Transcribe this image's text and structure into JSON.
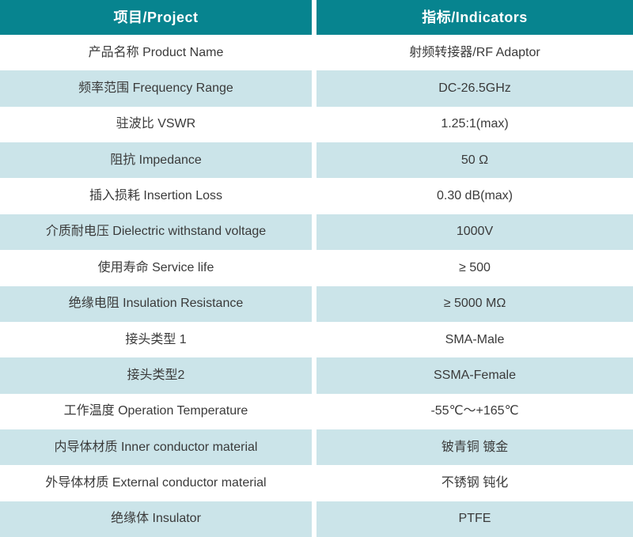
{
  "table": {
    "header": {
      "project": "项目/Project",
      "indicators": "指标/Indicators"
    },
    "rows": [
      {
        "label": "产品名称 Product Name",
        "value": "射频转接器/RF Adaptor"
      },
      {
        "label": "频率范围 Frequency Range",
        "value": "DC-26.5GHz"
      },
      {
        "label": "驻波比 VSWR",
        "value": "1.25:1(max)"
      },
      {
        "label": "阻抗 Impedance",
        "value": "50 Ω"
      },
      {
        "label": "插入损耗 Insertion Loss",
        "value": "0.30 dB(max)"
      },
      {
        "label": "介质耐电压 Dielectric withstand voltage",
        "value": "1000V"
      },
      {
        "label": "使用寿命 Service life",
        "value": "≥ 500"
      },
      {
        "label": "绝缘电阻 Insulation Resistance",
        "value": "≥ 5000 MΩ"
      },
      {
        "label": "接头类型 1",
        "value": "SMA-Male"
      },
      {
        "label": "接头类型2",
        "value": "SSMA-Female"
      },
      {
        "label": "工作温度 Operation Temperature",
        "value": "-55℃～+165℃"
      },
      {
        "label": "内导体材质 Inner conductor material",
        "value": "铍青铜 镀金"
      },
      {
        "label": "外导体材质 External conductor material",
        "value": "不锈钢 钝化"
      },
      {
        "label": "绝缘体 Insulator",
        "value": "PTFE"
      }
    ]
  },
  "colors": {
    "header_bg": "#07848F",
    "header_text": "#FFFFFF",
    "row_bg": "#FFFFFF",
    "row_alt_bg": "#CBE4E9",
    "body_text": "#3A3A3A",
    "divider": "#FFFFFF"
  }
}
